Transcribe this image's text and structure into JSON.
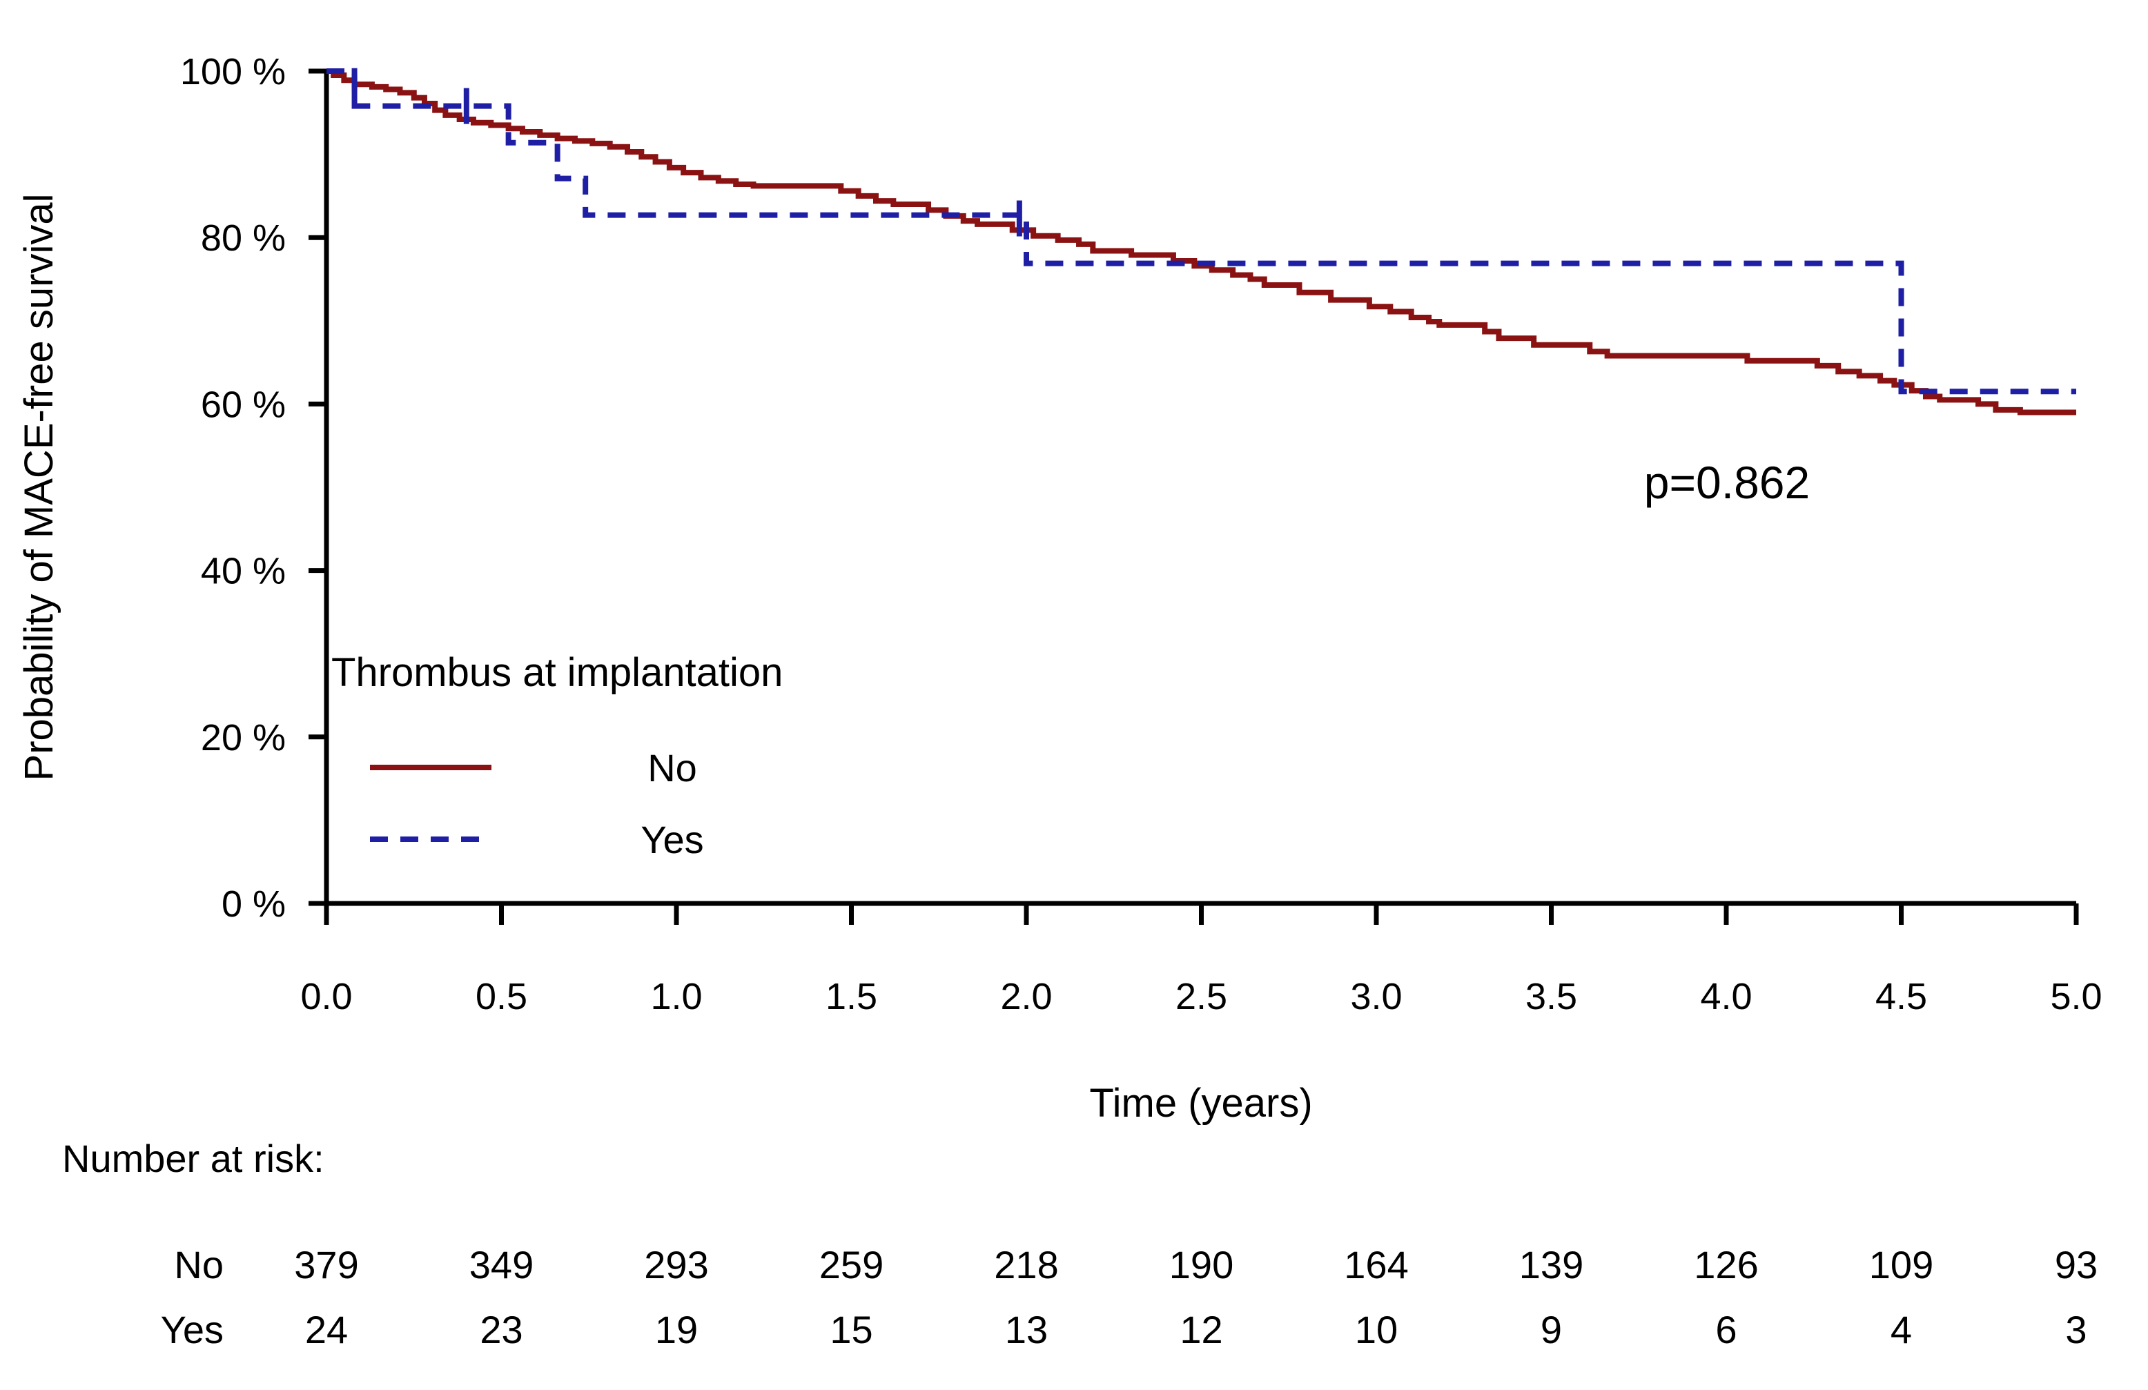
{
  "figure": {
    "background": "#ffffff",
    "axis_color": "#000000",
    "text_color": "#000000"
  },
  "y_axis": {
    "title": "Probability of MACE-free survival",
    "tick_labels": [
      "0 %",
      "20 %",
      "40 %",
      "60 %",
      "80 %",
      "100 %"
    ],
    "tick_values": [
      0,
      20,
      40,
      60,
      80,
      100
    ],
    "range": [
      0,
      100
    ]
  },
  "x_axis": {
    "title": "Time (years)",
    "tick_labels": [
      "0.0",
      "0.5",
      "1.0",
      "1.5",
      "2.0",
      "2.5",
      "3.0",
      "3.5",
      "4.0",
      "4.5",
      "5.0"
    ],
    "tick_values": [
      0,
      0.5,
      1,
      1.5,
      2,
      2.5,
      3,
      3.5,
      4,
      4.5,
      5
    ],
    "range": [
      0,
      5
    ]
  },
  "annotation": {
    "p_value": "p=0.862"
  },
  "legend": {
    "title": "Thrombus at implantation",
    "items": [
      {
        "label": "No",
        "style": "solid",
        "color": "#8B1212"
      },
      {
        "label": "Yes",
        "style": "dashed",
        "color": "#1F1FA6"
      }
    ]
  },
  "chart_data": {
    "type": "line",
    "subtype": "kaplan-meier-step",
    "title": "",
    "xlabel": "Time (years)",
    "ylabel": "Probability of MACE-free survival",
    "xlim": [
      0,
      5
    ],
    "ylim": [
      0,
      100
    ],
    "grid": false,
    "legend_position": "lower-left-inside",
    "series": [
      {
        "name": "No",
        "color": "#8B1212",
        "line_style": "solid",
        "points": [
          [
            0,
            100
          ],
          [
            0.02,
            99.5
          ],
          [
            0.05,
            98.9
          ],
          [
            0.08,
            98.4
          ],
          [
            0.13,
            98.1
          ],
          [
            0.17,
            97.8
          ],
          [
            0.21,
            97.4
          ],
          [
            0.25,
            96.8
          ],
          [
            0.28,
            96.1
          ],
          [
            0.31,
            95.3
          ],
          [
            0.34,
            94.7
          ],
          [
            0.38,
            94.2
          ],
          [
            0.42,
            93.8
          ],
          [
            0.47,
            93.5
          ],
          [
            0.52,
            93.1
          ],
          [
            0.56,
            92.7
          ],
          [
            0.61,
            92.3
          ],
          [
            0.66,
            91.9
          ],
          [
            0.71,
            91.6
          ],
          [
            0.76,
            91.3
          ],
          [
            0.81,
            90.9
          ],
          [
            0.86,
            90.3
          ],
          [
            0.9,
            89.7
          ],
          [
            0.94,
            89.1
          ],
          [
            0.98,
            88.4
          ],
          [
            1.02,
            87.8
          ],
          [
            1.07,
            87.2
          ],
          [
            1.12,
            86.8
          ],
          [
            1.17,
            86.4
          ],
          [
            1.22,
            86.2
          ],
          [
            1.47,
            85.6
          ],
          [
            1.52,
            85.0
          ],
          [
            1.57,
            84.4
          ],
          [
            1.62,
            84.0
          ],
          [
            1.72,
            83.3
          ],
          [
            1.77,
            82.6
          ],
          [
            1.82,
            82.0
          ],
          [
            1.86,
            81.6
          ],
          [
            1.96,
            80.9
          ],
          [
            2.02,
            80.2
          ],
          [
            2.09,
            79.7
          ],
          [
            2.15,
            79.2
          ],
          [
            2.19,
            78.4
          ],
          [
            2.3,
            77.9
          ],
          [
            2.42,
            77.2
          ],
          [
            2.48,
            76.6
          ],
          [
            2.53,
            76.1
          ],
          [
            2.59,
            75.5
          ],
          [
            2.64,
            75.0
          ],
          [
            2.68,
            74.3
          ],
          [
            2.78,
            73.4
          ],
          [
            2.87,
            72.5
          ],
          [
            2.98,
            71.7
          ],
          [
            3.04,
            71.1
          ],
          [
            3.1,
            70.4
          ],
          [
            3.15,
            69.9
          ],
          [
            3.18,
            69.5
          ],
          [
            3.31,
            68.7
          ],
          [
            3.35,
            67.9
          ],
          [
            3.45,
            67.1
          ],
          [
            3.61,
            66.3
          ],
          [
            3.66,
            65.8
          ],
          [
            4.06,
            65.2
          ],
          [
            4.26,
            64.6
          ],
          [
            4.32,
            63.9
          ],
          [
            4.38,
            63.4
          ],
          [
            4.44,
            62.8
          ],
          [
            4.48,
            62.3
          ],
          [
            4.53,
            61.6
          ],
          [
            4.57,
            60.9
          ],
          [
            4.61,
            60.5
          ],
          [
            4.72,
            60.0
          ],
          [
            4.77,
            59.3
          ],
          [
            4.84,
            59.0
          ]
        ]
      },
      {
        "name": "Yes",
        "color": "#1F1FA6",
        "line_style": "dashed",
        "points": [
          [
            0,
            100
          ],
          [
            0.08,
            95.8
          ],
          [
            0.52,
            91.4
          ],
          [
            0.66,
            87.1
          ],
          [
            0.74,
            82.7
          ],
          [
            2.0,
            76.9
          ],
          [
            4.5,
            61.5
          ]
        ]
      }
    ],
    "censor_marks": [
      {
        "series": "Yes",
        "color": "#1F1FA6",
        "points": [
          [
            0.08,
            98.2
          ],
          [
            0.4,
            95.8
          ],
          [
            1.98,
            82.3
          ]
        ]
      }
    ]
  },
  "risk_table": {
    "header": "Number at risk:",
    "time_points": [
      0,
      0.5,
      1,
      1.5,
      2,
      2.5,
      3,
      3.5,
      4,
      4.5,
      5
    ],
    "rows": [
      {
        "label": "No",
        "values": [
          379,
          349,
          293,
          259,
          218,
          190,
          164,
          139,
          126,
          109,
          93
        ]
      },
      {
        "label": "Yes",
        "values": [
          24,
          23,
          19,
          15,
          13,
          12,
          10,
          9,
          6,
          4,
          3
        ]
      }
    ]
  }
}
